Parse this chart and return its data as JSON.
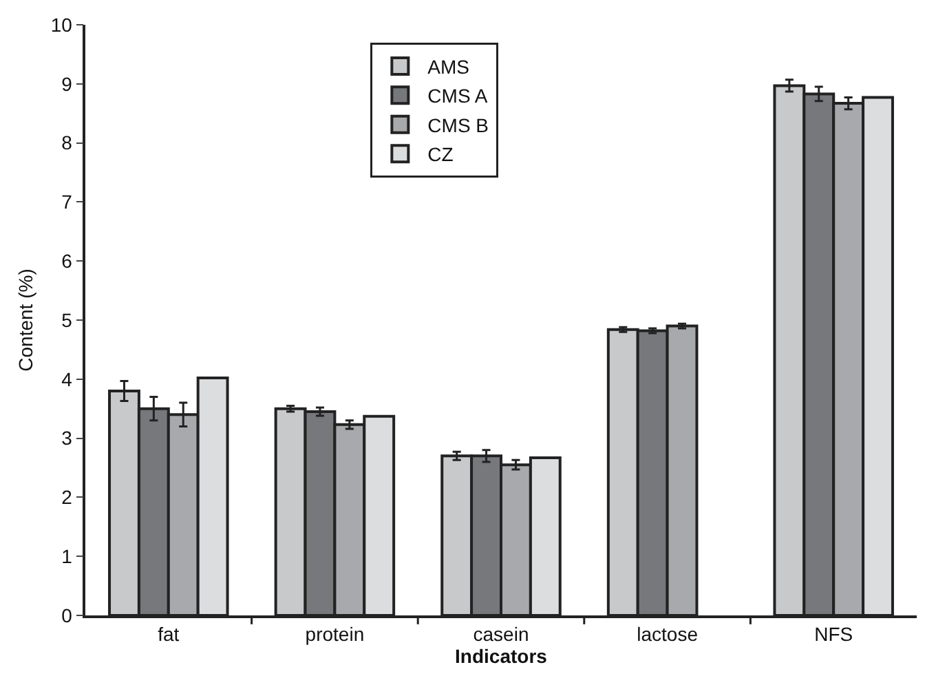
{
  "chart_data": {
    "type": "bar",
    "xlabel": "Indicators",
    "ylabel": "Content (%)",
    "categories": [
      "fat",
      "protein",
      "casein",
      "lactose",
      "NFS"
    ],
    "series": [
      {
        "name": "AMS",
        "color": "#c8c9cb",
        "values": [
          3.8,
          3.5,
          2.7,
          4.84,
          8.97
        ],
        "errors": [
          0.17,
          0.05,
          0.07,
          0.04,
          0.1
        ]
      },
      {
        "name": "CMS A",
        "color": "#77787c",
        "values": [
          3.5,
          3.45,
          2.7,
          4.82,
          8.83
        ],
        "errors": [
          0.2,
          0.07,
          0.1,
          0.04,
          0.12
        ]
      },
      {
        "name": "CMS B",
        "color": "#a8a9ac",
        "values": [
          3.4,
          3.23,
          2.55,
          4.9,
          8.67
        ],
        "errors": [
          0.2,
          0.07,
          0.08,
          0.04,
          0.1
        ]
      },
      {
        "name": "CZ",
        "color": "#dcdddf",
        "values": [
          4.02,
          3.37,
          2.67,
          null,
          8.77
        ]
      }
    ],
    "ylim": [
      0,
      10
    ],
    "yticks": [
      0,
      1,
      2,
      3,
      4,
      5,
      6,
      7,
      8,
      9,
      10
    ],
    "grid": false,
    "legend": "top"
  }
}
